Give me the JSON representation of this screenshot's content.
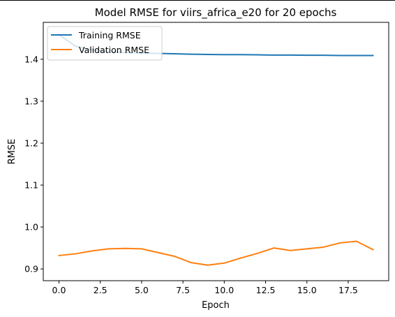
{
  "chart_data": {
    "type": "line",
    "title": "Model RMSE for viirs_africa_e20 for 20 epochs",
    "xlabel": "Epoch",
    "ylabel": "RMSE",
    "xlim": [
      -0.95,
      19.95
    ],
    "ylim": [
      0.872,
      1.488
    ],
    "xticks": [
      0.0,
      2.5,
      5.0,
      7.5,
      10.0,
      12.5,
      15.0,
      17.5
    ],
    "xtick_labels": [
      "0.0",
      "2.5",
      "5.0",
      "7.5",
      "10.0",
      "12.5",
      "15.0",
      "17.5"
    ],
    "yticks": [
      0.9,
      1.0,
      1.1,
      1.2,
      1.3,
      1.4
    ],
    "ytick_labels": [
      "0.9",
      "1.0",
      "1.1",
      "1.2",
      "1.3",
      "1.4"
    ],
    "grid": false,
    "legend_position": "top-left",
    "x": [
      0,
      1,
      2,
      3,
      4,
      5,
      6,
      7,
      8,
      9,
      10,
      11,
      12,
      13,
      14,
      15,
      16,
      17,
      18,
      19
    ],
    "series": [
      {
        "name": "Training RMSE",
        "color": "#1f77b4",
        "values": [
          1.459,
          1.431,
          1.422,
          1.418,
          1.416,
          1.415,
          1.414,
          1.413,
          1.412,
          1.4115,
          1.411,
          1.411,
          1.4105,
          1.41,
          1.41,
          1.4095,
          1.4095,
          1.409,
          1.409,
          1.409
        ]
      },
      {
        "name": "Validation RMSE",
        "color": "#ff7f0e",
        "values": [
          0.932,
          0.936,
          0.943,
          0.948,
          0.949,
          0.948,
          0.939,
          0.93,
          0.915,
          0.909,
          0.914,
          0.926,
          0.937,
          0.95,
          0.944,
          0.948,
          0.952,
          0.962,
          0.966,
          0.946
        ]
      }
    ]
  }
}
